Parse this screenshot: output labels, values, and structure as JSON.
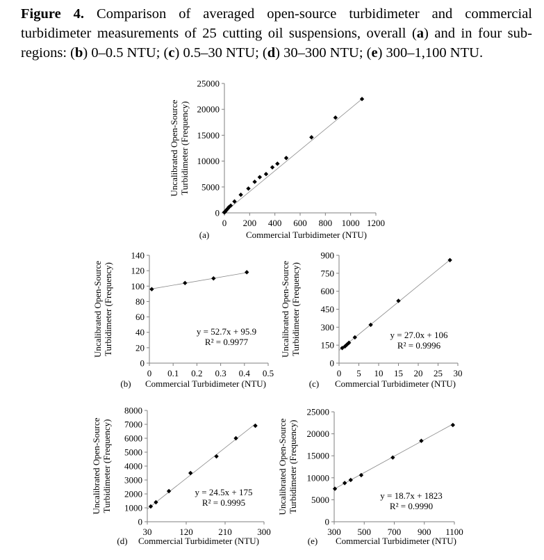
{
  "caption": {
    "figure_label": "Figure 4.",
    "text_1": " Comparison of averaged open-source turbidimeter and commercial turbidimeter measurements of 25 cutting oil suspensions, overall (",
    "a": "a",
    "text_2": ") and in four sub-regions: (",
    "b": "b",
    "text_3": ") 0–0.5 NTU; (",
    "c": "c",
    "text_4": ") 0.5–30 NTU; (",
    "d": "d",
    "text_5": ") 30–300 NTU; (",
    "e": "e",
    "text_6": ") 300–1,100 NTU."
  },
  "chart_data": [
    {
      "panel": "(a)",
      "type": "scatter",
      "xlabel": "Commercial Turbidimeter (NTU)",
      "ylabel": [
        "Uncalibrated Open-Source",
        "Turbidimeter (Frequency)"
      ],
      "xlim": [
        0,
        1200
      ],
      "ylim": [
        0,
        25000
      ],
      "xticks": [
        0,
        200,
        400,
        600,
        800,
        1000,
        1200
      ],
      "yticks": [
        0,
        5000,
        10000,
        15000,
        20000,
        25000
      ],
      "grid": false,
      "trendline": true,
      "points": [
        [
          0.05,
          97
        ],
        [
          0.15,
          104
        ],
        [
          0.27,
          110
        ],
        [
          0.41,
          118
        ],
        [
          1,
          126
        ],
        [
          2,
          150
        ],
        [
          2.5,
          165
        ],
        [
          4,
          215
        ],
        [
          8,
          320
        ],
        [
          15,
          520
        ],
        [
          28,
          860
        ],
        [
          35,
          1100
        ],
        [
          50,
          1400
        ],
        [
          80,
          2200
        ],
        [
          130,
          3500
        ],
        [
          190,
          4700
        ],
        [
          240,
          6000
        ],
        [
          280,
          6900
        ],
        [
          330,
          7500
        ],
        [
          380,
          8800
        ],
        [
          420,
          9500
        ],
        [
          490,
          10600
        ],
        [
          690,
          14600
        ],
        [
          880,
          18400
        ],
        [
          1090,
          22000
        ]
      ]
    },
    {
      "panel": "(b)",
      "type": "scatter",
      "xlabel": "Commercial Turbidimeter (NTU)",
      "ylabel": [
        "Uncalibrated Open-Source",
        "Turbidimeter (Frequency)"
      ],
      "xlim": [
        0,
        0.5
      ],
      "ylim": [
        0,
        140
      ],
      "xticks": [
        0,
        0.1,
        0.2,
        0.3,
        0.4,
        0.5
      ],
      "yticks": [
        0,
        20,
        40,
        60,
        80,
        100,
        120,
        140
      ],
      "grid": false,
      "equation": "y = 52.7x + 95.9",
      "r2": "R² = 0.9977",
      "fit": [
        52.7,
        95.9
      ],
      "points": [
        [
          0.01,
          96
        ],
        [
          0.15,
          104
        ],
        [
          0.27,
          110
        ],
        [
          0.41,
          118
        ]
      ]
    },
    {
      "panel": "(c)",
      "type": "scatter",
      "xlabel": "Commercial Turbidimeter (NTU)",
      "ylabel": [
        "Uncalibrated Open-Source",
        "Turbidimeter (Frequency)"
      ],
      "xlim": [
        0,
        30
      ],
      "ylim": [
        0,
        900
      ],
      "xticks": [
        0,
        5,
        10,
        15,
        20,
        25,
        30
      ],
      "yticks": [
        0,
        150,
        300,
        450,
        600,
        750,
        900
      ],
      "grid": false,
      "equation": "y = 27.0x + 106",
      "r2": "R² = 0.9996",
      "fit": [
        27.0,
        106
      ],
      "points": [
        [
          0.8,
          126
        ],
        [
          1.5,
          140
        ],
        [
          2,
          155
        ],
        [
          2.5,
          170
        ],
        [
          4,
          215
        ],
        [
          8,
          320
        ],
        [
          15,
          520
        ],
        [
          28,
          860
        ]
      ]
    },
    {
      "panel": "(d)",
      "type": "scatter",
      "xlabel": "Commercial Turbidimeter (NTU)",
      "ylabel": [
        "Uncalibrated Open-Source",
        "Turbidimeter (Frequency)"
      ],
      "xlim": [
        30,
        300
      ],
      "ylim": [
        0,
        8000
      ],
      "xticks": [
        30,
        120,
        210,
        300
      ],
      "yticks": [
        0,
        1000,
        2000,
        3000,
        4000,
        5000,
        6000,
        7000,
        8000
      ],
      "grid": false,
      "equation": "y = 24.5x + 175",
      "r2": "R² = 0.9995",
      "fit": [
        24.5,
        175
      ],
      "points": [
        [
          38,
          1100
        ],
        [
          50,
          1400
        ],
        [
          80,
          2200
        ],
        [
          130,
          3500
        ],
        [
          190,
          4700
        ],
        [
          235,
          6000
        ],
        [
          280,
          6900
        ]
      ]
    },
    {
      "panel": "(e)",
      "type": "scatter",
      "xlabel": "Commercial Turbidimeter (NTU)",
      "ylabel": [
        "Uncalibrated Open-Source",
        "Turbidimeter (Frequency)"
      ],
      "xlim": [
        300,
        1100
      ],
      "ylim": [
        0,
        25000
      ],
      "xticks": [
        300,
        500,
        700,
        900,
        1100
      ],
      "yticks": [
        0,
        5000,
        10000,
        15000,
        20000,
        25000
      ],
      "grid": false,
      "equation": "y = 18.7x + 1823",
      "r2": "R² = 0.9990",
      "fit": [
        18.7,
        1823
      ],
      "points": [
        [
          305,
          7500
        ],
        [
          370,
          8800
        ],
        [
          410,
          9500
        ],
        [
          480,
          10600
        ],
        [
          690,
          14600
        ],
        [
          880,
          18400
        ],
        [
          1090,
          22000
        ]
      ]
    }
  ]
}
